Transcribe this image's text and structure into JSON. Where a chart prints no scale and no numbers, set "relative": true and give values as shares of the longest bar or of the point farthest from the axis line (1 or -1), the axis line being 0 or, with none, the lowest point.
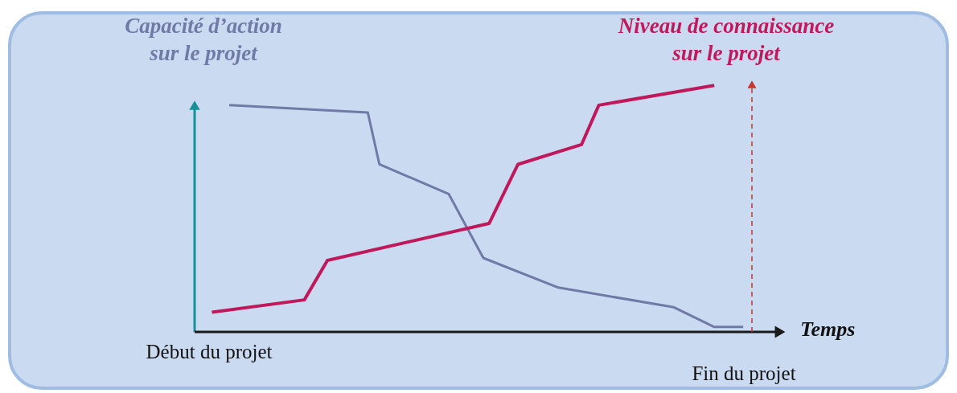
{
  "chart_data": {
    "type": "line",
    "relative": true,
    "xlabel": "Temps",
    "line_style": "solid",
    "categories": [
      null,
      null,
      null,
      null,
      null,
      null,
      null,
      null,
      null,
      null,
      null,
      null,
      null,
      null,
      null,
      null,
      null,
      null,
      null,
      null,
      null,
      null,
      null,
      null,
      null,
      null,
      null,
      null,
      null,
      null,
      null,
      null,
      null,
      null,
      null,
      null,
      null,
      null,
      null,
      null,
      null,
      null,
      null,
      null,
      null,
      null,
      null,
      null,
      null,
      null,
      null,
      null,
      null,
      null,
      null,
      null,
      null,
      null,
      null,
      null,
      null,
      null,
      null,
      null,
      null,
      null,
      null,
      null,
      null,
      null,
      null,
      null,
      null,
      null,
      null,
      null,
      null,
      null,
      null,
      null,
      null,
      null,
      null,
      null,
      null,
      null,
      null,
      null,
      null,
      null,
      null,
      null,
      null,
      null,
      null,
      null,
      null,
      null,
      null,
      null,
      null
    ],
    "series": [
      {
        "name": "Capacité d’action\nsur le projet",
        "color": "#6f7ba6",
        "values": [
          null,
          null,
          null,
          null,
          null,
          null,
          0.92,
          null,
          null,
          null,
          null,
          null,
          null,
          null,
          null,
          null,
          null,
          null,
          null,
          null,
          null,
          null,
          null,
          null,
          null,
          null,
          null,
          null,
          null,
          null,
          0.89,
          null,
          0.68,
          null,
          null,
          null,
          null,
          null,
          null,
          null,
          null,
          null,
          null,
          null,
          0.56,
          null,
          null,
          null,
          null,
          null,
          0.3,
          null,
          null,
          null,
          null,
          null,
          null,
          null,
          null,
          null,
          null,
          null,
          null,
          0.18,
          null,
          null,
          null,
          null,
          null,
          null,
          null,
          null,
          null,
          null,
          null,
          null,
          null,
          null,
          null,
          null,
          null,
          null,
          null,
          0.1,
          null,
          null,
          null,
          null,
          null,
          null,
          0.02,
          null,
          null,
          null,
          null,
          0.02,
          null,
          null,
          null,
          null,
          null
        ]
      },
      {
        "name": "Niveau de connaissance\nsur le projet",
        "color": "#c0185a",
        "values": [
          null,
          null,
          null,
          0.08,
          null,
          null,
          null,
          null,
          null,
          null,
          null,
          null,
          null,
          null,
          null,
          null,
          null,
          null,
          null,
          0.13,
          null,
          null,
          null,
          0.29,
          null,
          null,
          null,
          null,
          null,
          null,
          null,
          null,
          null,
          null,
          null,
          null,
          null,
          null,
          null,
          null,
          null,
          null,
          null,
          null,
          null,
          null,
          null,
          null,
          null,
          null,
          null,
          0.44,
          null,
          null,
          null,
          null,
          0.68,
          null,
          null,
          null,
          null,
          null,
          null,
          null,
          null,
          null,
          null,
          0.76,
          null,
          null,
          0.92,
          null,
          null,
          null,
          null,
          null,
          null,
          null,
          null,
          null,
          null,
          null,
          null,
          null,
          null,
          null,
          null,
          null,
          null,
          null,
          1.0,
          null,
          null,
          null,
          null,
          null,
          null,
          null,
          null,
          null,
          null
        ]
      }
    ],
    "annotations": [
      "Début du projet",
      "Fin du projet"
    ]
  }
}
